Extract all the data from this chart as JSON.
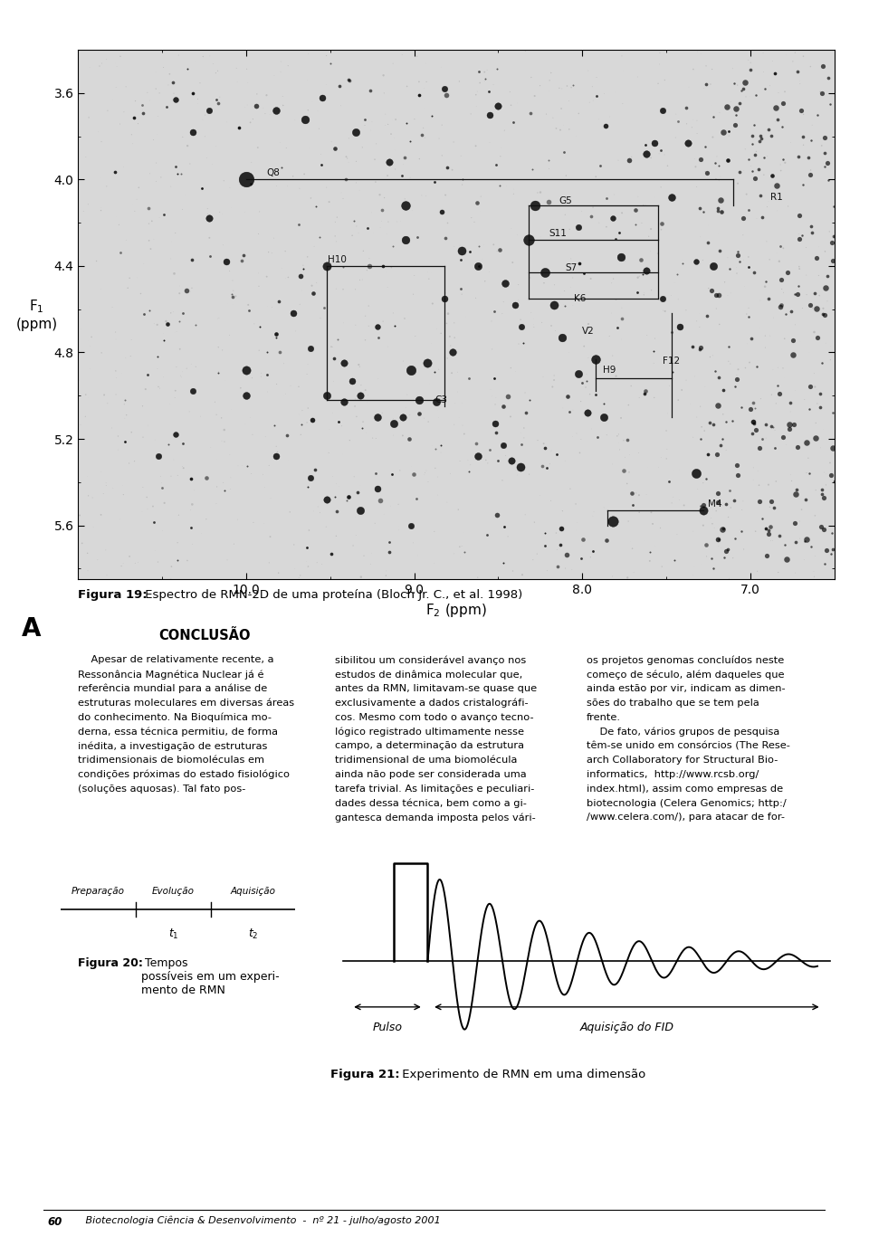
{
  "page_bg": "#ffffff",
  "fig_width": 9.6,
  "fig_height": 13.77,
  "nmr_title_bold": "Figura 19:",
  "nmr_title_rest": " Espectro de RMN-2D de uma proteína (Bloch Jr. C., et al. 1998)",
  "conclusion_title": "CONCLUSÃO",
  "fig20_label": "Figura 20:",
  "fig20_text": " Tempos\npossíveis em um experi-\nmento de RMN",
  "fig21_label": "Figura 21:",
  "fig21_text": " Experimento de RMN em uma dimensão",
  "footer_num": "60",
  "footer_text": "   Biotecnologia Ciência & Desenvolvimento  -  nº 21 - julho/agosto 2001",
  "prep_label": "Preparação",
  "evol_label": "Evolução",
  "acq_label": "Aquisição",
  "t1_label": "t1",
  "t2_label": "t2",
  "pulso_label": "Pulso",
  "fid_label": "Aquisição do FID",
  "col1_lines": [
    "    Apesar de relativamente recente, a",
    "Ressonância Magnética Nuclear já é",
    "referência mundial para a análise de",
    "estruturas moleculares em diversas áreas",
    "do conhecimento. Na Bioquímica mo-",
    "derna, essa técnica permitiu, de forma",
    "inédita, a investigação de estruturas",
    "tridimensionais de biomoléculas em",
    "condições próximas do estado fisiológico",
    "(soluções aquosas). Tal fato pos-"
  ],
  "col2_lines": [
    "sibilitou um considerável avanço nos",
    "estudos de dinâmica molecular que,",
    "antes da RMN, limitavam-se quase que",
    "exclusivamente a dados cristalográfi-",
    "cos. Mesmo com todo o avanço tecno-",
    "lógico registrado ultimamente nesse",
    "campo, a determinação da estrutura",
    "tridimensional de uma biomolécula",
    "ainda não pode ser considerada uma",
    "tarefa trivial. As limitações e peculiari-",
    "dades dessa técnica, bem como a gi-",
    "gantesca demanda imposta pelos vári-"
  ],
  "col3_lines": [
    "os projetos genomas concluídos neste",
    "começo de século, além daqueles que",
    "ainda estão por vir, indicam as dimen-",
    "sões do trabalho que se tem pela",
    "frente.",
    "    De fato, vários grupos de pesquisa",
    "têm-se unido em consórcios (The Rese-",
    "arch Collaboratory for Structural Bio-",
    "informatics,  http://www.rcsb.org/",
    "index.html), assim como empresas de",
    "biotecnologia (Celera Genomics; http:/",
    "/www.celera.com/), para atacar de for-"
  ]
}
